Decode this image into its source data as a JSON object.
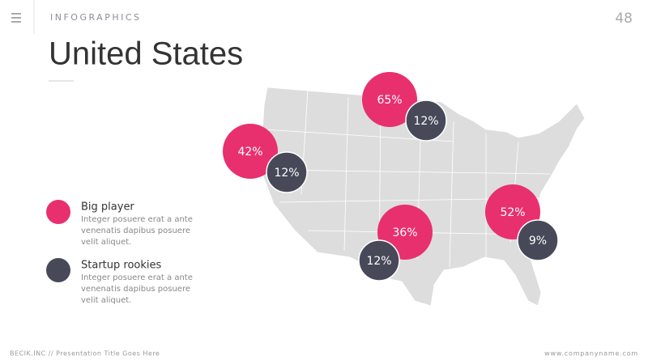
{
  "header": {
    "section": "INFOGRAPHICS",
    "page_number": "48",
    "title": "United States"
  },
  "legend": [
    {
      "label": "Big player",
      "description": [
        "Integer posuere erat a ante",
        "venenatis dapibus posuere",
        "velit aliquet."
      ]
    },
    {
      "label": "Startup rookies",
      "description": [
        "Integer posuere erat a ante",
        "venenatis dapibus posuere",
        "velit aliquet."
      ]
    }
  ],
  "markers": [
    {
      "big_player": "65%",
      "startup_rookies": "12%"
    },
    {
      "big_player": "42%",
      "startup_rookies": "12%"
    },
    {
      "big_player": "36%",
      "startup_rookies": "12%"
    },
    {
      "big_player": "52%",
      "startup_rookies": "9%"
    }
  ],
  "footer": {
    "left": "BECIK.INC // Presentation Title Goes Here",
    "right": "www.companyname.com"
  }
}
